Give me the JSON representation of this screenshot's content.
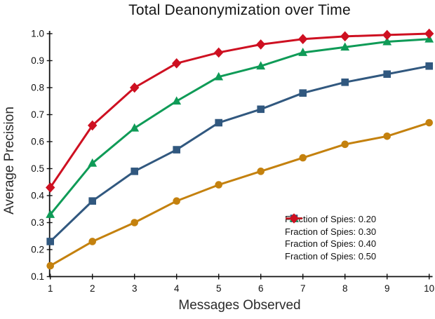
{
  "chart_data": {
    "type": "line",
    "title": "Total Deanonymization over Time",
    "xlabel": "Messages Observed",
    "ylabel": "Average Precision",
    "x": [
      1,
      2,
      3,
      4,
      5,
      6,
      7,
      8,
      9,
      10
    ],
    "xlim": [
      1,
      10
    ],
    "ylim": [
      0.1,
      1.0
    ],
    "yticks": [
      0.1,
      0.2,
      0.3,
      0.4,
      0.5,
      0.6,
      0.7,
      0.8,
      0.9,
      1.0
    ],
    "grid": false,
    "legend_position": "lower-right-inside",
    "series": [
      {
        "name": "Fraction of Spies: 0.20",
        "color": "#C4810E",
        "marker": "circle",
        "values": [
          0.14,
          0.23,
          0.3,
          0.38,
          0.44,
          0.49,
          0.54,
          0.59,
          0.62,
          0.67
        ]
      },
      {
        "name": "Fraction of Spies: 0.30",
        "color": "#31587F",
        "marker": "square",
        "values": [
          0.23,
          0.38,
          0.49,
          0.57,
          0.67,
          0.72,
          0.78,
          0.82,
          0.85,
          0.88
        ]
      },
      {
        "name": "Fraction of Spies: 0.40",
        "color": "#0F9B57",
        "marker": "triangle-up",
        "values": [
          0.33,
          0.52,
          0.65,
          0.75,
          0.84,
          0.88,
          0.93,
          0.95,
          0.97,
          0.98
        ]
      },
      {
        "name": "Fraction of Spies: 0.50",
        "color": "#CE1021",
        "marker": "diamond",
        "values": [
          0.43,
          0.66,
          0.8,
          0.89,
          0.93,
          0.96,
          0.98,
          0.99,
          0.995,
          1.0
        ]
      }
    ]
  }
}
